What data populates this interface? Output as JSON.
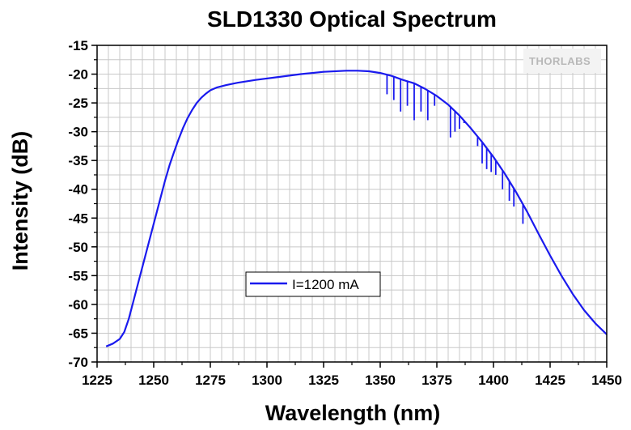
{
  "chart_data": {
    "type": "line",
    "title": "SLD1330 Optical Spectrum",
    "xlabel": "Wavelength (nm)",
    "ylabel": "Intensity (dB)",
    "xlim": [
      1225,
      1450
    ],
    "ylim": [
      -70,
      -15
    ],
    "xticks": [
      1225,
      1250,
      1275,
      1300,
      1325,
      1350,
      1375,
      1400,
      1425,
      1450
    ],
    "yticks": [
      -15,
      -20,
      -25,
      -30,
      -35,
      -40,
      -45,
      -50,
      -55,
      -60,
      -65,
      -70
    ],
    "grid": true,
    "legend_position": "center-left",
    "logo": "THORLABS",
    "series": [
      {
        "name": "I=1200 mA",
        "color": "#1a1aee",
        "x": [
          1229,
          1232,
          1235,
          1237,
          1239,
          1241,
          1243,
          1245,
          1247,
          1249,
          1251,
          1253,
          1255,
          1257,
          1259,
          1261,
          1263,
          1265,
          1267,
          1269,
          1271,
          1273,
          1275,
          1278,
          1282,
          1287,
          1295,
          1305,
          1315,
          1325,
          1335,
          1340,
          1345,
          1350,
          1355,
          1360,
          1365,
          1370,
          1375,
          1380,
          1385,
          1390,
          1395,
          1400,
          1405,
          1410,
          1415,
          1420,
          1425,
          1430,
          1435,
          1440,
          1445,
          1450
        ],
        "y": [
          -67.3,
          -66.8,
          -66.0,
          -64.8,
          -62.5,
          -59.5,
          -56.5,
          -53.5,
          -50.5,
          -47.5,
          -44.5,
          -41.5,
          -38.5,
          -35.8,
          -33.5,
          -31.3,
          -29.3,
          -27.6,
          -26.2,
          -25.0,
          -24.1,
          -23.4,
          -22.8,
          -22.3,
          -21.9,
          -21.5,
          -21.0,
          -20.5,
          -20.0,
          -19.6,
          -19.4,
          -19.4,
          -19.5,
          -19.8,
          -20.3,
          -21.0,
          -21.6,
          -22.6,
          -23.8,
          -25.3,
          -27.2,
          -29.4,
          -31.8,
          -34.4,
          -37.3,
          -40.5,
          -44.0,
          -47.8,
          -51.5,
          -55.0,
          -58.2,
          -61.0,
          -63.3,
          -65.2
        ]
      }
    ],
    "dips": [
      {
        "x": 1353,
        "y": -23.5
      },
      {
        "x": 1356,
        "y": -24.5
      },
      {
        "x": 1359,
        "y": -26.5
      },
      {
        "x": 1362,
        "y": -25.5
      },
      {
        "x": 1365,
        "y": -28.0
      },
      {
        "x": 1368,
        "y": -26.5
      },
      {
        "x": 1371,
        "y": -28.0
      },
      {
        "x": 1374,
        "y": -25.5
      },
      {
        "x": 1381,
        "y": -31.0
      },
      {
        "x": 1383,
        "y": -30.0
      },
      {
        "x": 1385,
        "y": -29.5
      },
      {
        "x": 1387,
        "y": -28.5
      },
      {
        "x": 1393,
        "y": -32.5
      },
      {
        "x": 1395,
        "y": -35.5
      },
      {
        "x": 1397,
        "y": -36.5
      },
      {
        "x": 1399,
        "y": -37.0
      },
      {
        "x": 1401,
        "y": -37.5
      },
      {
        "x": 1404,
        "y": -40.0
      },
      {
        "x": 1407,
        "y": -42.0
      },
      {
        "x": 1409,
        "y": -43.0
      },
      {
        "x": 1413,
        "y": -46.0
      }
    ]
  }
}
